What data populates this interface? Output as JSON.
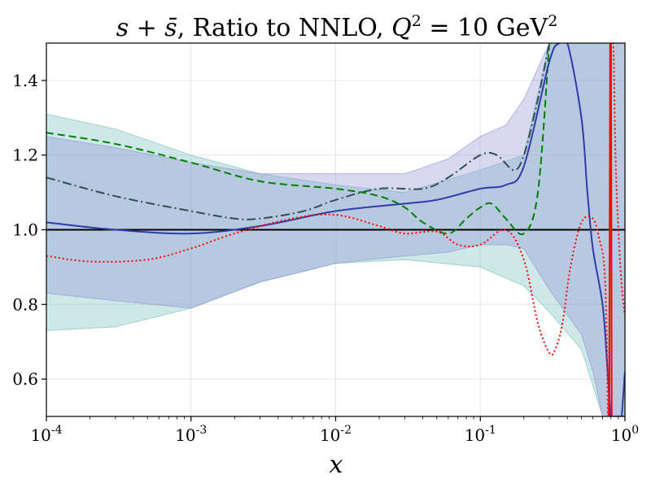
{
  "chart_data": {
    "type": "line",
    "title_parts": {
      "pdf": "s + s̄",
      "text": ", Ratio to NNLO, ",
      "scale_var": "Q",
      "scale_exp": "2",
      "scale_eq": " = 10 GeV",
      "unit_exp": "2"
    },
    "xlabel": "x",
    "ylabel": "",
    "xscale": "log",
    "xlim": [
      0.0001,
      1
    ],
    "ylim": [
      0.5,
      1.5
    ],
    "x_ticks": [
      {
        "value": 0.0001,
        "base": "10",
        "exp": "-4"
      },
      {
        "value": 0.001,
        "base": "10",
        "exp": "-3"
      },
      {
        "value": 0.01,
        "base": "10",
        "exp": "-2"
      },
      {
        "value": 0.1,
        "base": "10",
        "exp": "-1"
      },
      {
        "value": 1,
        "base": "10",
        "exp": "0"
      }
    ],
    "y_ticks": [
      {
        "value": 0.6,
        "label": "0.6"
      },
      {
        "value": 0.8,
        "label": "0.8"
      },
      {
        "value": 1.0,
        "label": "1.0"
      },
      {
        "value": 1.2,
        "label": "1.2"
      },
      {
        "value": 1.4,
        "label": "1.4"
      }
    ],
    "grid": true,
    "reference_line": {
      "y": 1.0,
      "color": "#000000"
    },
    "bands": [
      {
        "name": "teal-band",
        "color": "#6fbdb8",
        "x": [
          0.0001,
          0.0003,
          0.001,
          0.003,
          0.01,
          0.03,
          0.1,
          0.2,
          0.3,
          0.5,
          0.7,
          0.8,
          0.9,
          1.0
        ],
        "upper": [
          1.31,
          1.27,
          1.2,
          1.15,
          1.12,
          1.1,
          1.16,
          1.2,
          1.5,
          1.5,
          1.5,
          1.5,
          1.5,
          1.5
        ],
        "lower": [
          0.73,
          0.74,
          0.79,
          0.86,
          0.91,
          0.92,
          0.9,
          0.85,
          0.78,
          0.68,
          0.5,
          0.5,
          0.5,
          0.5
        ]
      },
      {
        "name": "purple-band",
        "color": "#8f8fd6",
        "x": [
          0.0001,
          0.0003,
          0.001,
          0.003,
          0.01,
          0.03,
          0.06,
          0.1,
          0.15,
          0.2,
          0.3,
          0.5,
          0.6,
          0.7,
          0.8,
          0.9,
          1.0
        ],
        "upper": [
          1.25,
          1.22,
          1.18,
          1.15,
          1.15,
          1.15,
          1.19,
          1.25,
          1.28,
          1.35,
          1.5,
          1.5,
          1.5,
          1.5,
          1.5,
          1.5,
          1.5
        ],
        "lower": [
          0.83,
          0.81,
          0.79,
          0.86,
          0.91,
          0.93,
          0.94,
          0.96,
          0.96,
          0.95,
          0.84,
          0.72,
          0.62,
          0.5,
          0.5,
          0.5,
          0.5
        ]
      }
    ],
    "series": [
      {
        "name": "green-dashed",
        "color": "#008000",
        "dash": "9,5",
        "x": [
          0.0001,
          0.0003,
          0.001,
          0.003,
          0.01,
          0.02,
          0.03,
          0.04,
          0.06,
          0.08,
          0.1,
          0.12,
          0.15,
          0.2,
          0.25,
          0.3
        ],
        "y": [
          1.26,
          1.23,
          1.18,
          1.13,
          1.11,
          1.09,
          1.06,
          1.02,
          0.99,
          1.03,
          1.06,
          1.07,
          1.03,
          0.99,
          1.1,
          1.5
        ]
      },
      {
        "name": "darkslate-dashdot",
        "color": "#2f4f4f",
        "dash": "11,4,2,4",
        "x": [
          0.0001,
          0.0003,
          0.001,
          0.002,
          0.003,
          0.006,
          0.01,
          0.02,
          0.04,
          0.06,
          0.1,
          0.13,
          0.17,
          0.2,
          0.25,
          0.3
        ],
        "y": [
          1.14,
          1.09,
          1.05,
          1.03,
          1.03,
          1.05,
          1.08,
          1.11,
          1.11,
          1.14,
          1.2,
          1.2,
          1.16,
          1.2,
          1.35,
          1.5
        ]
      },
      {
        "name": "blue-solid",
        "color": "#2e3ba8",
        "dash": "",
        "x": [
          0.0001,
          0.0003,
          0.001,
          0.003,
          0.01,
          0.03,
          0.05,
          0.1,
          0.15,
          0.2,
          0.3,
          0.35,
          0.4,
          0.5,
          0.55,
          0.6,
          0.7,
          0.75,
          0.78,
          0.8,
          0.85,
          0.9,
          1.0
        ],
        "y": [
          1.02,
          1.0,
          0.99,
          1.01,
          1.05,
          1.07,
          1.08,
          1.11,
          1.12,
          1.17,
          1.45,
          1.5,
          1.5,
          1.3,
          1.1,
          0.95,
          0.8,
          0.65,
          0.55,
          0.5,
          0.5,
          0.5,
          0.5
        ]
      },
      {
        "name": "red-dotted",
        "color": "#ff0000",
        "dash": "2,3",
        "x": [
          0.0001,
          0.0002,
          0.0005,
          0.001,
          0.002,
          0.005,
          0.01,
          0.02,
          0.03,
          0.05,
          0.07,
          0.1,
          0.15,
          0.2,
          0.25,
          0.3,
          0.33,
          0.37,
          0.42,
          0.5,
          0.6,
          0.66,
          0.72,
          0.75,
          0.77,
          0.8,
          0.83,
          0.86,
          0.9,
          0.95,
          1.0
        ],
        "y": [
          0.93,
          0.915,
          0.92,
          0.95,
          0.99,
          1.03,
          1.04,
          1.01,
          0.99,
          0.995,
          0.96,
          0.96,
          1.0,
          0.92,
          0.75,
          0.67,
          0.68,
          0.75,
          0.9,
          1.02,
          1.03,
          0.98,
          0.9,
          0.7,
          0.5,
          1.45,
          1.5,
          1.2,
          1.0,
          0.85,
          0.77
        ]
      },
      {
        "name": "red-spike",
        "color": "#ff0000",
        "dash": "",
        "x": [
          0.78,
          0.79,
          0.8,
          0.81
        ],
        "y": [
          0.5,
          1.5,
          1.5,
          0.5
        ]
      },
      {
        "name": "blue-edge",
        "color": "#2e3ba8",
        "dash": "",
        "x": [
          0.95,
          1.0
        ],
        "y": [
          0.5,
          0.62
        ]
      }
    ]
  }
}
